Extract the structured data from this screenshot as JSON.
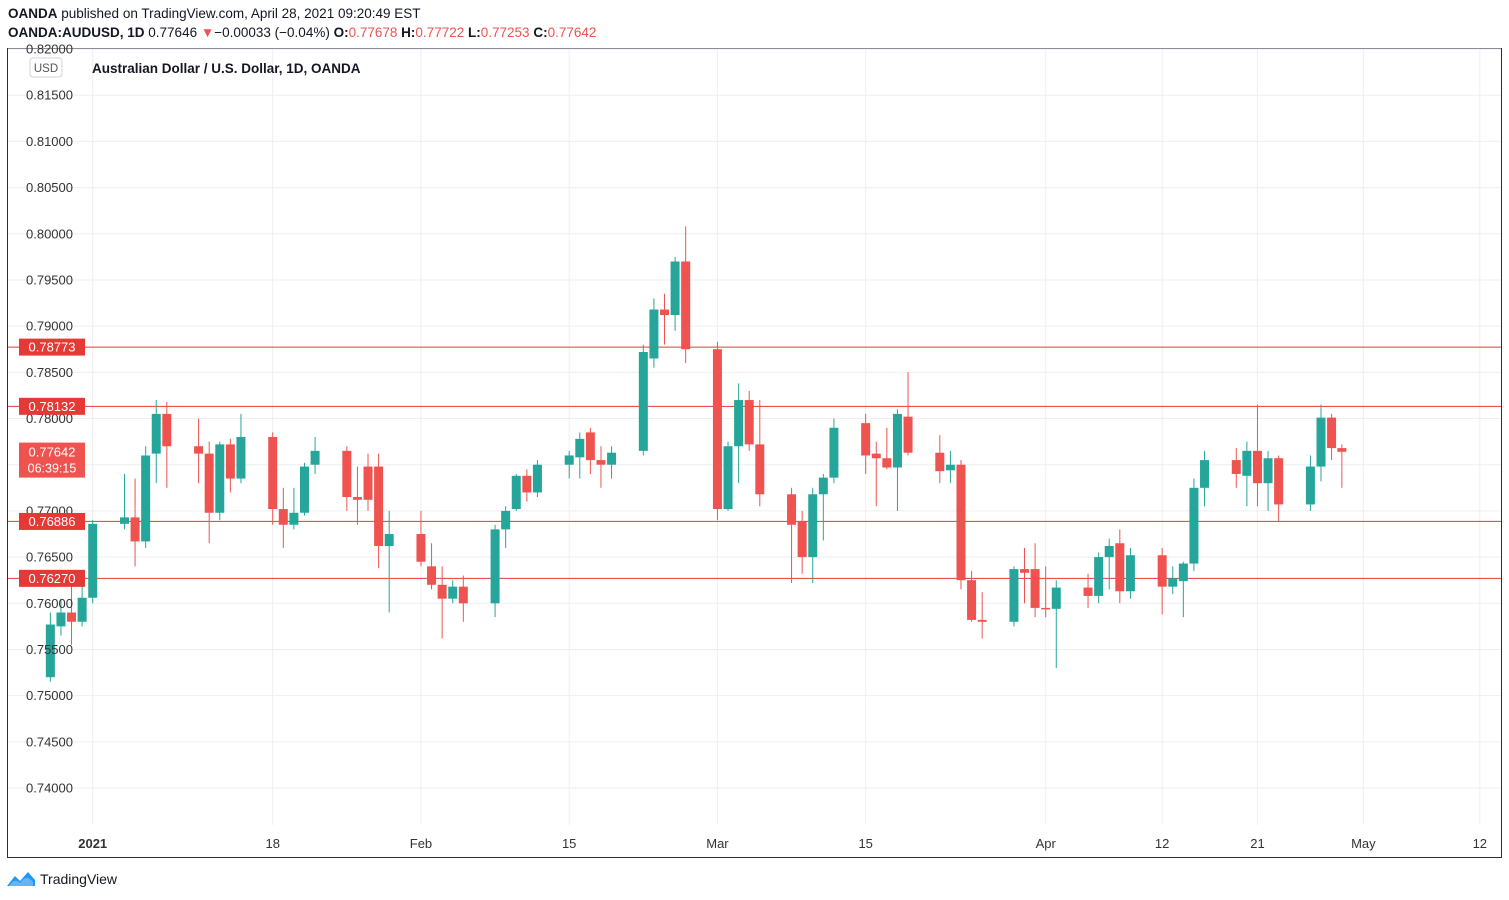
{
  "header": {
    "publisher_line": {
      "brand": "OANDA",
      "rest": "published on TradingView.com, April 28, 2021 09:20:49 EST"
    },
    "quote_line": {
      "symbol": "OANDA:AUDUSD, 1D",
      "last": "0.77646",
      "change_arrow": "▼",
      "change": "−0.00033 (−0.04%)",
      "o_label": "O:",
      "o": "0.77678",
      "h_label": "H:",
      "h": "0.77722",
      "l_label": "L:",
      "l": "0.77253",
      "c_label": "C:",
      "c": "0.77642"
    }
  },
  "footer": {
    "brand": "TradingView"
  },
  "colors": {
    "up": "#26a69a",
    "down": "#ef5350",
    "level_line": "#e53935",
    "grid": "#eeeff2",
    "axis_text": "#333333"
  },
  "chart_data": {
    "type": "candlestick",
    "title": "Australian Dollar / U.S. Dollar, 1D, OANDA",
    "currency_badge": "USD",
    "ylim": [
      0.736,
      0.82
    ],
    "y_ticks": [
      "0.74000",
      "0.74500",
      "0.75000",
      "0.75500",
      "0.76000",
      "0.76500",
      "0.77000",
      "0.77500",
      "0.78000",
      "0.78500",
      "0.79000",
      "0.79500",
      "0.80000",
      "0.80500",
      "0.81000",
      "0.81500",
      "0.82000"
    ],
    "x_ticks": [
      {
        "label": "2021",
        "date": "2021-01-01",
        "bold": true
      },
      {
        "label": "18",
        "date": "2021-01-18"
      },
      {
        "label": "Feb",
        "date": "2021-02-01"
      },
      {
        "label": "15",
        "date": "2021-02-15"
      },
      {
        "label": "Mar",
        "date": "2021-03-01"
      },
      {
        "label": "15",
        "date": "2021-03-15"
      },
      {
        "label": "Apr",
        "date": "2021-04-01"
      },
      {
        "label": "12",
        "date": "2021-04-12"
      },
      {
        "label": "21",
        "date": "2021-04-21"
      },
      {
        "label": "May",
        "date": "2021-05-01"
      },
      {
        "label": "12",
        "date": "2021-05-12"
      }
    ],
    "x_range": [
      "2020-12-24",
      "2021-05-14"
    ],
    "horizontal_levels": [
      {
        "value": 0.78773,
        "label": "0.78773"
      },
      {
        "value": 0.78132,
        "label": "0.78132"
      },
      {
        "value": 0.76886,
        "label": "0.76886"
      },
      {
        "value": 0.7627,
        "label": "0.76270"
      }
    ],
    "last_price_label": {
      "value": 0.77642,
      "price": "0.77642",
      "countdown": "06:39:15"
    },
    "candles": [
      {
        "date": "2020-12-28",
        "o": 0.752,
        "h": 0.759,
        "l": 0.7515,
        "c": 0.7577
      },
      {
        "date": "2020-12-29",
        "o": 0.7575,
        "h": 0.7605,
        "l": 0.7565,
        "c": 0.759
      },
      {
        "date": "2020-12-30",
        "o": 0.759,
        "h": 0.7625,
        "l": 0.7555,
        "c": 0.758
      },
      {
        "date": "2020-12-31",
        "o": 0.758,
        "h": 0.762,
        "l": 0.7575,
        "c": 0.7606
      },
      {
        "date": "2021-01-01",
        "o": 0.7606,
        "h": 0.769,
        "l": 0.76,
        "c": 0.7686
      },
      {
        "date": "2021-01-04",
        "o": 0.7686,
        "h": 0.774,
        "l": 0.768,
        "c": 0.7693
      },
      {
        "date": "2021-01-05",
        "o": 0.7693,
        "h": 0.7735,
        "l": 0.764,
        "c": 0.7667
      },
      {
        "date": "2021-01-06",
        "o": 0.7667,
        "h": 0.777,
        "l": 0.766,
        "c": 0.776
      },
      {
        "date": "2021-01-07",
        "o": 0.7762,
        "h": 0.782,
        "l": 0.773,
        "c": 0.7805
      },
      {
        "date": "2021-01-08",
        "o": 0.7805,
        "h": 0.7818,
        "l": 0.7725,
        "c": 0.777
      },
      {
        "date": "2021-01-11",
        "o": 0.777,
        "h": 0.78,
        "l": 0.773,
        "c": 0.7762
      },
      {
        "date": "2021-01-12",
        "o": 0.7762,
        "h": 0.7775,
        "l": 0.7665,
        "c": 0.7698
      },
      {
        "date": "2021-01-13",
        "o": 0.7698,
        "h": 0.7775,
        "l": 0.769,
        "c": 0.7772
      },
      {
        "date": "2021-01-14",
        "o": 0.7772,
        "h": 0.7778,
        "l": 0.772,
        "c": 0.7735
      },
      {
        "date": "2021-01-15",
        "o": 0.7735,
        "h": 0.7805,
        "l": 0.773,
        "c": 0.778
      },
      {
        "date": "2021-01-18",
        "o": 0.778,
        "h": 0.7785,
        "l": 0.7685,
        "c": 0.7702
      },
      {
        "date": "2021-01-19",
        "o": 0.7702,
        "h": 0.7725,
        "l": 0.766,
        "c": 0.7685
      },
      {
        "date": "2021-01-20",
        "o": 0.7685,
        "h": 0.7725,
        "l": 0.768,
        "c": 0.7698
      },
      {
        "date": "2021-01-21",
        "o": 0.7698,
        "h": 0.7752,
        "l": 0.7695,
        "c": 0.7748
      },
      {
        "date": "2021-01-22",
        "o": 0.775,
        "h": 0.778,
        "l": 0.774,
        "c": 0.7765
      },
      {
        "date": "2021-01-25",
        "o": 0.7765,
        "h": 0.777,
        "l": 0.77,
        "c": 0.7715
      },
      {
        "date": "2021-01-26",
        "o": 0.7715,
        "h": 0.7748,
        "l": 0.7685,
        "c": 0.7712
      },
      {
        "date": "2021-01-27",
        "o": 0.7748,
        "h": 0.7762,
        "l": 0.77,
        "c": 0.7712
      },
      {
        "date": "2021-01-28",
        "o": 0.7748,
        "h": 0.7762,
        "l": 0.7638,
        "c": 0.7662
      },
      {
        "date": "2021-01-29",
        "o": 0.7662,
        "h": 0.77,
        "l": 0.759,
        "c": 0.7675
      },
      {
        "date": "2021-02-01",
        "o": 0.7675,
        "h": 0.77,
        "l": 0.764,
        "c": 0.7645
      },
      {
        "date": "2021-02-02",
        "o": 0.764,
        "h": 0.7665,
        "l": 0.7615,
        "c": 0.762
      },
      {
        "date": "2021-02-03",
        "o": 0.762,
        "h": 0.764,
        "l": 0.7562,
        "c": 0.7605
      },
      {
        "date": "2021-02-04",
        "o": 0.7605,
        "h": 0.7625,
        "l": 0.76,
        "c": 0.7618
      },
      {
        "date": "2021-02-05",
        "o": 0.7618,
        "h": 0.763,
        "l": 0.758,
        "c": 0.76
      },
      {
        "date": "2021-02-08",
        "o": 0.76,
        "h": 0.7685,
        "l": 0.7585,
        "c": 0.768
      },
      {
        "date": "2021-02-09",
        "o": 0.768,
        "h": 0.7705,
        "l": 0.766,
        "c": 0.77
      },
      {
        "date": "2021-02-10",
        "o": 0.7702,
        "h": 0.774,
        "l": 0.77,
        "c": 0.7738
      },
      {
        "date": "2021-02-11",
        "o": 0.7738,
        "h": 0.7745,
        "l": 0.771,
        "c": 0.772
      },
      {
        "date": "2021-02-12",
        "o": 0.772,
        "h": 0.7755,
        "l": 0.7715,
        "c": 0.775
      },
      {
        "date": "2021-02-15",
        "o": 0.775,
        "h": 0.7765,
        "l": 0.7735,
        "c": 0.776
      },
      {
        "date": "2021-02-16",
        "o": 0.7758,
        "h": 0.7785,
        "l": 0.7735,
        "c": 0.7778
      },
      {
        "date": "2021-02-17",
        "o": 0.7785,
        "h": 0.779,
        "l": 0.774,
        "c": 0.7755
      },
      {
        "date": "2021-02-18",
        "o": 0.7755,
        "h": 0.777,
        "l": 0.7725,
        "c": 0.775
      },
      {
        "date": "2021-02-19",
        "o": 0.775,
        "h": 0.777,
        "l": 0.7735,
        "c": 0.7763
      },
      {
        "date": "2021-02-22",
        "o": 0.7765,
        "h": 0.788,
        "l": 0.776,
        "c": 0.7872
      },
      {
        "date": "2021-02-23",
        "o": 0.7865,
        "h": 0.793,
        "l": 0.7855,
        "c": 0.7918
      },
      {
        "date": "2021-02-24",
        "o": 0.7918,
        "h": 0.7935,
        "l": 0.788,
        "c": 0.7912
      },
      {
        "date": "2021-02-25",
        "o": 0.7912,
        "h": 0.7975,
        "l": 0.7895,
        "c": 0.797
      },
      {
        "date": "2021-02-26",
        "o": 0.797,
        "h": 0.8008,
        "l": 0.786,
        "c": 0.7875
      },
      {
        "date": "2021-03-01",
        "o": 0.7875,
        "h": 0.7883,
        "l": 0.769,
        "c": 0.7702
      },
      {
        "date": "2021-03-02",
        "o": 0.7702,
        "h": 0.7775,
        "l": 0.77,
        "c": 0.777
      },
      {
        "date": "2021-03-03",
        "o": 0.777,
        "h": 0.7838,
        "l": 0.773,
        "c": 0.782
      },
      {
        "date": "2021-03-04",
        "o": 0.782,
        "h": 0.783,
        "l": 0.7765,
        "c": 0.7772
      },
      {
        "date": "2021-03-05",
        "o": 0.7772,
        "h": 0.782,
        "l": 0.7705,
        "c": 0.7718
      },
      {
        "date": "2021-03-08",
        "o": 0.7718,
        "h": 0.7725,
        "l": 0.7622,
        "c": 0.7685
      },
      {
        "date": "2021-03-09",
        "o": 0.7688,
        "h": 0.77,
        "l": 0.7632,
        "c": 0.765
      },
      {
        "date": "2021-03-10",
        "o": 0.765,
        "h": 0.7725,
        "l": 0.7622,
        "c": 0.7718
      },
      {
        "date": "2021-03-11",
        "o": 0.7718,
        "h": 0.774,
        "l": 0.7668,
        "c": 0.7736
      },
      {
        "date": "2021-03-12",
        "o": 0.7736,
        "h": 0.78,
        "l": 0.773,
        "c": 0.779
      },
      {
        "date": "2021-03-15",
        "o": 0.7795,
        "h": 0.7805,
        "l": 0.774,
        "c": 0.776
      },
      {
        "date": "2021-03-16",
        "o": 0.7762,
        "h": 0.7775,
        "l": 0.7705,
        "c": 0.7757
      },
      {
        "date": "2021-03-17",
        "o": 0.7757,
        "h": 0.779,
        "l": 0.7745,
        "c": 0.7747
      },
      {
        "date": "2021-03-18",
        "o": 0.7747,
        "h": 0.781,
        "l": 0.77,
        "c": 0.7805
      },
      {
        "date": "2021-03-19",
        "o": 0.7802,
        "h": 0.785,
        "l": 0.776,
        "c": 0.7763
      },
      {
        "date": "2021-03-22",
        "o": 0.7763,
        "h": 0.7782,
        "l": 0.773,
        "c": 0.7743
      },
      {
        "date": "2021-03-23",
        "o": 0.7744,
        "h": 0.7765,
        "l": 0.773,
        "c": 0.775
      },
      {
        "date": "2021-03-24",
        "o": 0.775,
        "h": 0.7755,
        "l": 0.7615,
        "c": 0.7625
      },
      {
        "date": "2021-03-25",
        "o": 0.7625,
        "h": 0.7635,
        "l": 0.758,
        "c": 0.7582
      },
      {
        "date": "2021-03-26",
        "o": 0.7582,
        "h": 0.7612,
        "l": 0.7562,
        "c": 0.758
      },
      {
        "date": "2021-03-29",
        "o": 0.758,
        "h": 0.764,
        "l": 0.7575,
        "c": 0.7637
      },
      {
        "date": "2021-03-30",
        "o": 0.7637,
        "h": 0.766,
        "l": 0.76,
        "c": 0.7633
      },
      {
        "date": "2021-03-31",
        "o": 0.7637,
        "h": 0.7665,
        "l": 0.7585,
        "c": 0.7595
      },
      {
        "date": "2021-04-01",
        "o": 0.7595,
        "h": 0.764,
        "l": 0.7585,
        "c": 0.7594
      },
      {
        "date": "2021-04-02",
        "o": 0.7594,
        "h": 0.7625,
        "l": 0.753,
        "c": 0.7617
      },
      {
        "date": "2021-04-05",
        "o": 0.7617,
        "h": 0.7632,
        "l": 0.7595,
        "c": 0.7608
      },
      {
        "date": "2021-04-06",
        "o": 0.7608,
        "h": 0.7655,
        "l": 0.76,
        "c": 0.765
      },
      {
        "date": "2021-04-07",
        "o": 0.765,
        "h": 0.767,
        "l": 0.7615,
        "c": 0.7662
      },
      {
        "date": "2021-04-08",
        "o": 0.7665,
        "h": 0.768,
        "l": 0.76,
        "c": 0.7613
      },
      {
        "date": "2021-04-09",
        "o": 0.7613,
        "h": 0.766,
        "l": 0.7605,
        "c": 0.7652
      },
      {
        "date": "2021-04-12",
        "o": 0.7652,
        "h": 0.766,
        "l": 0.7588,
        "c": 0.7618
      },
      {
        "date": "2021-04-13",
        "o": 0.7618,
        "h": 0.764,
        "l": 0.761,
        "c": 0.7627
      },
      {
        "date": "2021-04-14",
        "o": 0.7624,
        "h": 0.7645,
        "l": 0.7585,
        "c": 0.7643
      },
      {
        "date": "2021-04-15",
        "o": 0.7643,
        "h": 0.7735,
        "l": 0.7635,
        "c": 0.7725
      },
      {
        "date": "2021-04-16",
        "o": 0.7725,
        "h": 0.7765,
        "l": 0.7705,
        "c": 0.7755
      },
      {
        "date": "2021-04-19",
        "o": 0.7755,
        "h": 0.7768,
        "l": 0.7725,
        "c": 0.774
      },
      {
        "date": "2021-04-20",
        "o": 0.7738,
        "h": 0.7775,
        "l": 0.7705,
        "c": 0.7765
      },
      {
        "date": "2021-04-21",
        "o": 0.7765,
        "h": 0.7815,
        "l": 0.7705,
        "c": 0.773
      },
      {
        "date": "2021-04-22",
        "o": 0.773,
        "h": 0.7765,
        "l": 0.77,
        "c": 0.7757
      },
      {
        "date": "2021-04-23",
        "o": 0.7757,
        "h": 0.776,
        "l": 0.7688,
        "c": 0.7707
      },
      {
        "date": "2021-04-26",
        "o": 0.7707,
        "h": 0.776,
        "l": 0.77,
        "c": 0.7748
      },
      {
        "date": "2021-04-27",
        "o": 0.7748,
        "h": 0.7815,
        "l": 0.7732,
        "c": 0.7801
      },
      {
        "date": "2021-04-28",
        "o": 0.7801,
        "h": 0.7805,
        "l": 0.7755,
        "c": 0.7768
      },
      {
        "date": "2021-04-28b",
        "o": 0.7768,
        "h": 0.7772,
        "l": 0.7725,
        "c": 0.7764
      }
    ]
  }
}
